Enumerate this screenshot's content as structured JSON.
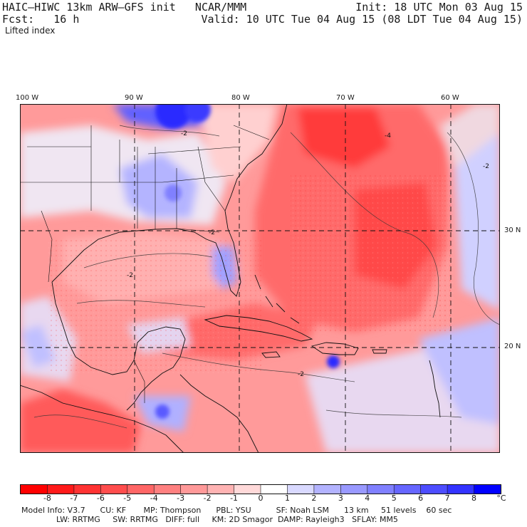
{
  "header": {
    "line1_left": "HAIC–HIWC 13km ARW–GFS init   NCAR/MMM",
    "line1_right": "Init: 18 UTC Mon 03 Aug 15",
    "line2_left": "Fcst:   16 h",
    "line2_right": "Valid: 10 UTC Tue 04 Aug 15 (08 LDT Tue 04 Aug 15)",
    "field": "Lifted index"
  },
  "axes": {
    "lon_labels": [
      "100 W",
      "90 W",
      "80 W",
      "70 W",
      "60 W"
    ],
    "lat_labels": [
      "30 N",
      "20 N"
    ]
  },
  "colorbar": {
    "labels": [
      "-8",
      "-7",
      "-6",
      "-5",
      "-4",
      "-3",
      "-2",
      "-1",
      "0",
      "1",
      "2",
      "3",
      "4",
      "5",
      "6",
      "7",
      "8"
    ],
    "unit": "°C",
    "colors": [
      "#ff0000",
      "#ff1a1a",
      "#ff3333",
      "#ff4d4d",
      "#ff6666",
      "#ff8080",
      "#ff9999",
      "#ffb3b3",
      "#ffd9d9",
      "#ffffff",
      "#d9d9ff",
      "#b3b3ff",
      "#9999ff",
      "#8080ff",
      "#6666ff",
      "#4d4dff",
      "#3333ff",
      "#0000ff"
    ]
  },
  "model_info": {
    "line1": "Model Info: V3.7      CU: KF       MP: Thompson      PBL: YSU          SF: Noah LSM      13 km     51 levels    60 sec",
    "line2": "              LW: RRTMG     SW: RRTMG   DIFF: full     KM: 2D Smagor  DAMP: Rayleigh3   SFLAY: MM5"
  },
  "map_colors": {
    "ocean_base": "#ff9a9a",
    "strong_red": "#ff5a5a",
    "very_red": "#ff3a3a",
    "light_pink": "#ffc8c8",
    "pale": "#f4eef4",
    "light_blue": "#c8c8ff",
    "mid_blue": "#9a9aff",
    "deep_blue": "#2a2aff"
  }
}
